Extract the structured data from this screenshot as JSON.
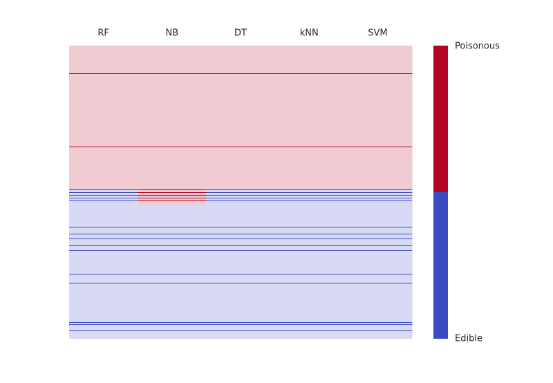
{
  "chart_data": {
    "type": "heatmap",
    "columns": [
      "RF",
      "NB",
      "DT",
      "kNN",
      "SVM"
    ],
    "classes": [
      "Edible",
      "Poisonous"
    ],
    "colors": [
      "#3b4cc0",
      "#b40426"
    ],
    "faint_colors": [
      "#d8daf3",
      "#f0cbd2"
    ],
    "rows": [
      {
        "values": [
          1,
          1,
          1,
          1,
          1
        ],
        "strong": false,
        "count": 40
      },
      {
        "values": [
          1,
          1,
          1,
          1,
          1
        ],
        "strong": true,
        "count": 1
      },
      {
        "values": [
          1,
          1,
          1,
          1,
          1
        ],
        "strong": false,
        "count": 105
      },
      {
        "values": [
          1,
          1,
          1,
          1,
          1
        ],
        "strong": true,
        "count": 1
      },
      {
        "values": [
          1,
          1,
          1,
          1,
          1
        ],
        "strong": false,
        "count": 61
      },
      {
        "values": [
          0,
          1,
          0,
          0,
          0
        ],
        "strong": true,
        "count": 1
      },
      {
        "values": [
          0,
          1,
          0,
          0,
          0
        ],
        "strong": false,
        "count": 3
      },
      {
        "values": [
          0,
          1,
          0,
          0,
          0
        ],
        "strong": true,
        "count": 1
      },
      {
        "values": [
          0,
          1,
          0,
          0,
          0
        ],
        "strong": false,
        "count": 3
      },
      {
        "values": [
          0,
          1,
          0,
          0,
          0
        ],
        "strong": true,
        "count": 1
      },
      {
        "values": [
          0,
          1,
          0,
          0,
          0
        ],
        "strong": false,
        "count": 3
      },
      {
        "values": [
          0,
          1,
          0,
          0,
          0
        ],
        "strong": true,
        "count": 1
      },
      {
        "values": [
          0,
          1,
          0,
          0,
          0
        ],
        "strong": false,
        "count": 3
      },
      {
        "values": [
          0,
          1,
          0,
          0,
          0
        ],
        "strong": true,
        "count": 1
      },
      {
        "values": [
          0,
          1,
          0,
          0,
          0
        ],
        "strong": false,
        "count": 5
      },
      {
        "values": [
          0,
          0,
          0,
          0,
          0
        ],
        "strong": false,
        "count": 32
      },
      {
        "values": [
          0,
          0,
          0,
          0,
          0
        ],
        "strong": true,
        "count": 1
      },
      {
        "values": [
          0,
          0,
          0,
          0,
          0
        ],
        "strong": false,
        "count": 9
      },
      {
        "values": [
          0,
          0,
          0,
          0,
          0
        ],
        "strong": true,
        "count": 1
      },
      {
        "values": [
          0,
          0,
          0,
          0,
          0
        ],
        "strong": false,
        "count": 6
      },
      {
        "values": [
          0,
          0,
          0,
          0,
          0
        ],
        "strong": true,
        "count": 1
      },
      {
        "values": [
          0,
          0,
          0,
          0,
          0
        ],
        "strong": false,
        "count": 9
      },
      {
        "values": [
          0,
          0,
          0,
          0,
          0
        ],
        "strong": true,
        "count": 1
      },
      {
        "values": [
          0,
          0,
          0,
          0,
          0
        ],
        "strong": false,
        "count": 6
      },
      {
        "values": [
          0,
          0,
          0,
          0,
          0
        ],
        "strong": true,
        "count": 1
      },
      {
        "values": [
          0,
          0,
          0,
          0,
          0
        ],
        "strong": false,
        "count": 33
      },
      {
        "values": [
          0,
          0,
          0,
          0,
          0
        ],
        "strong": true,
        "count": 1
      },
      {
        "values": [
          0,
          0,
          0,
          0,
          0
        ],
        "strong": false,
        "count": 12
      },
      {
        "values": [
          0,
          0,
          0,
          0,
          0
        ],
        "strong": true,
        "count": 1
      },
      {
        "values": [
          0,
          0,
          0,
          0,
          0
        ],
        "strong": false,
        "count": 56
      },
      {
        "values": [
          0,
          0,
          0,
          0,
          0
        ],
        "strong": true,
        "count": 1
      },
      {
        "values": [
          0,
          0,
          0,
          0,
          0
        ],
        "strong": false,
        "count": 2
      },
      {
        "values": [
          0,
          0,
          0,
          0,
          0
        ],
        "strong": true,
        "count": 1
      },
      {
        "values": [
          0,
          0,
          0,
          0,
          0
        ],
        "strong": false,
        "count": 8
      },
      {
        "values": [
          0,
          0,
          0,
          0,
          0
        ],
        "strong": true,
        "count": 1
      },
      {
        "values": [
          0,
          0,
          0,
          0,
          0
        ],
        "strong": false,
        "count": 11
      }
    ]
  }
}
